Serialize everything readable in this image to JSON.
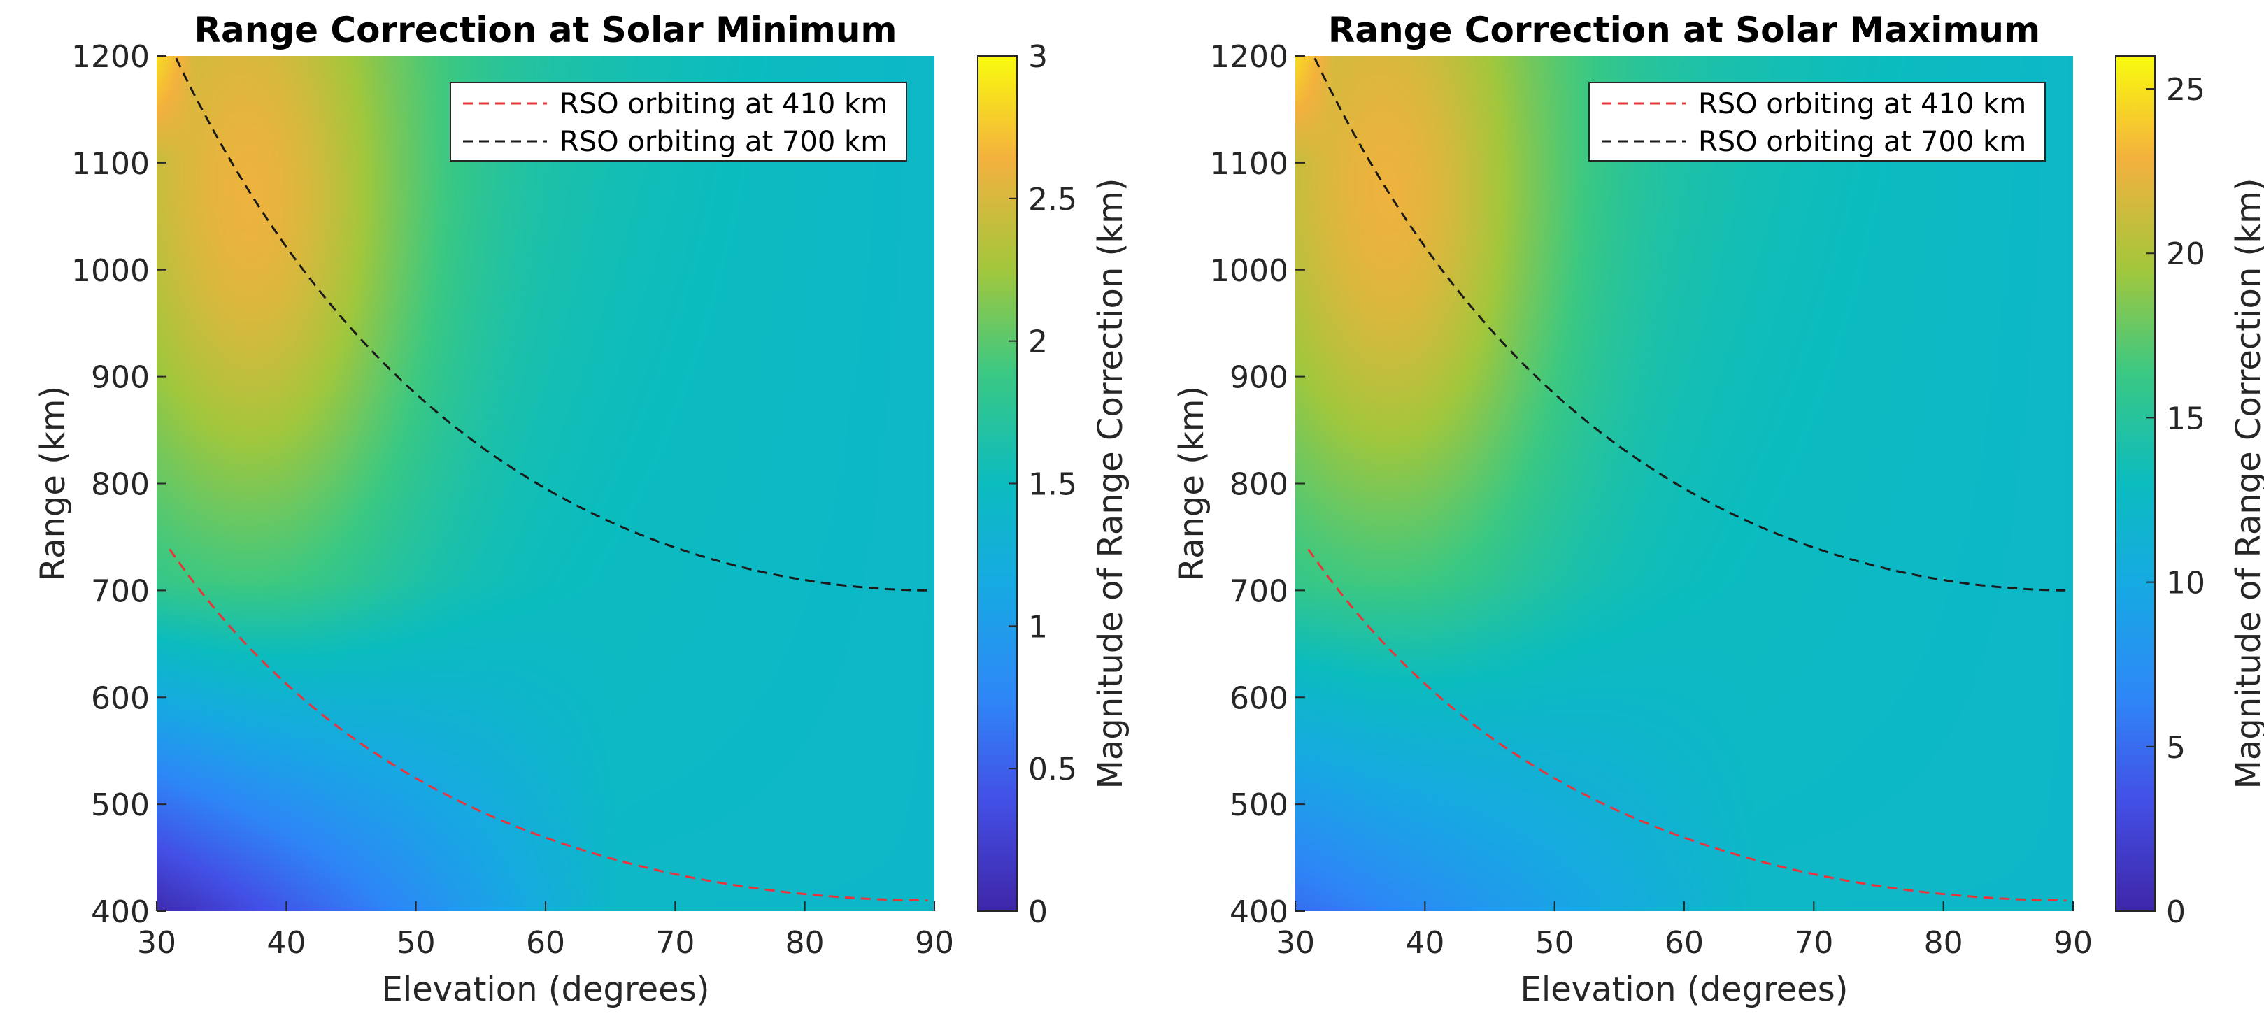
{
  "chart_data": [
    {
      "type": "heatmap",
      "title": "Range Correction at Solar Minimum",
      "xlabel": "Elevation (degrees)",
      "ylabel": "Range (km)",
      "xlim": [
        30,
        90
      ],
      "ylim": [
        400,
        1200
      ],
      "xticks": [
        "30",
        "40",
        "50",
        "60",
        "70",
        "80",
        "90"
      ],
      "yticks": [
        "400",
        "500",
        "600",
        "700",
        "800",
        "900",
        "1000",
        "1100",
        "1200"
      ],
      "colorbar": {
        "label": "Magnitude of Range Correction (km)",
        "range": [
          0,
          3
        ],
        "ticks": [
          "0",
          "0.5",
          "1",
          "1.5",
          "2",
          "2.5",
          "3"
        ]
      },
      "series": [
        {
          "name": "RSO orbiting at 410 km",
          "color": "#e8353b",
          "altitude": 410
        },
        {
          "name": "RSO orbiting at 700 km",
          "color": "#1a1a1a",
          "altitude": 700
        }
      ]
    },
    {
      "type": "heatmap",
      "title": "Range Correction at Solar Maximum",
      "xlabel": "Elevation (degrees)",
      "ylabel": "Range (km)",
      "xlim": [
        30,
        90
      ],
      "ylim": [
        400,
        1200
      ],
      "xticks": [
        "30",
        "40",
        "50",
        "60",
        "70",
        "80",
        "90"
      ],
      "yticks": [
        "400",
        "500",
        "600",
        "700",
        "800",
        "900",
        "1000",
        "1100",
        "1200"
      ],
      "colorbar": {
        "label": "Magnitude of Range Correction (km)",
        "range": [
          0,
          26
        ],
        "ticks": [
          "0",
          "5",
          "10",
          "15",
          "20",
          "25"
        ]
      },
      "series": [
        {
          "name": "RSO orbiting at 410 km",
          "color": "#e8353b",
          "altitude": 410
        },
        {
          "name": "RSO orbiting at 700 km",
          "color": "#1a1a1a",
          "altitude": 700
        }
      ]
    }
  ]
}
